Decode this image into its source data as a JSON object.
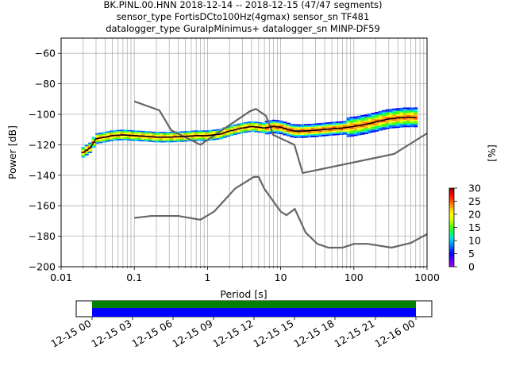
{
  "title_lines": [
    "BK.PINL.00.HNN   2018-12-14 -- 2018-12-15  (47/47 segments)",
    "sensor_type FortisDCto100Hz(4gmax) sensor_sn TF481",
    "datalogger_type GuralpMinimus+ datalogger_sn MINP-DF59"
  ],
  "chart_data": {
    "type": "heatmap",
    "xlabel": "Period [s]",
    "ylabel": "Power [dB]",
    "xscale": "log",
    "xlim": [
      0.01,
      1000
    ],
    "ylim": [
      -200,
      -50
    ],
    "grid": true,
    "x_ticks": [
      0.01,
      0.1,
      1,
      10,
      100,
      1000
    ],
    "x_tick_labels": [
      "0.01",
      "0.1",
      "1",
      "10",
      "100",
      "1000"
    ],
    "y_ticks": [
      -200,
      -180,
      -160,
      -140,
      -120,
      -100,
      -80,
      -60
    ],
    "y_tick_labels": [
      "−200",
      "−180",
      "−160",
      "−140",
      "−120",
      "−100",
      "−80",
      "−60"
    ],
    "grid_periods": [
      0.02,
      0.03,
      0.04,
      0.05,
      0.06,
      0.07,
      0.08,
      0.09,
      0.1,
      0.2,
      0.3,
      0.4,
      0.5,
      0.6,
      0.7,
      0.8,
      0.9,
      1,
      2,
      3,
      4,
      5,
      6,
      7,
      8,
      9,
      10,
      20,
      30,
      40,
      50,
      60,
      70,
      80,
      90,
      100,
      200,
      300,
      400,
      500,
      600,
      700,
      800,
      900
    ],
    "mean_psd": {
      "period": [
        0.02,
        0.025,
        0.03,
        0.04,
        0.05,
        0.07,
        0.1,
        0.15,
        0.2,
        0.3,
        0.5,
        0.7,
        1,
        1.5,
        2,
        3,
        4,
        5,
        6,
        7,
        8,
        10,
        15,
        20,
        30,
        50,
        70,
        100,
        150,
        200,
        300,
        500,
        700
      ],
      "power": [
        -125,
        -122,
        -116,
        -115,
        -114,
        -113.5,
        -114,
        -114.5,
        -115,
        -115,
        -114.5,
        -114,
        -114,
        -113,
        -111,
        -109,
        -108,
        -108.5,
        -109,
        -108.5,
        -108,
        -108.5,
        -111,
        -111,
        -110.5,
        -109.5,
        -109,
        -108,
        -106.5,
        -105,
        -103,
        -102,
        -102
      ]
    },
    "noise_models": [
      {
        "period": [
          0.1,
          0.17,
          0.4,
          0.8,
          1.24,
          2.4,
          4.3,
          5,
          6,
          10,
          12,
          15.6,
          21.9,
          31.6,
          45,
          70,
          101,
          154,
          328,
          600,
          1000
        ],
        "power": [
          -168,
          -166.7,
          -166.7,
          -169.2,
          -163.7,
          -148.6,
          -141.1,
          -141.1,
          -149,
          -163.8,
          -166.2,
          -162.1,
          -177.5,
          -185,
          -187.5,
          -187.5,
          -185,
          -185,
          -187.5,
          -184.4,
          -178.6
        ]
      },
      {
        "period": [
          0.1,
          0.22,
          0.32,
          0.8,
          3.8,
          4.6,
          6.3,
          7.9,
          15.4,
          20,
          354.8,
          1000
        ],
        "power": [
          -91.5,
          -97.4,
          -110.5,
          -120,
          -98,
          -96.5,
          -101,
          -113.5,
          -120,
          -138.5,
          -126,
          -112.5
        ]
      }
    ],
    "colorbar": {
      "label": "[%]",
      "min": 0,
      "max": 30,
      "ticks": [
        0,
        5,
        10,
        15,
        20,
        25,
        30
      ],
      "colormap": [
        "#ffffff",
        "#a000ff",
        "#5a00ff",
        "#0000ff",
        "#0064ff",
        "#00c8ff",
        "#00ff80",
        "#40ff00",
        "#c8ff00",
        "#ffff00",
        "#ffb000",
        "#ff5000",
        "#ff0000",
        "#8b0000"
      ]
    },
    "time_axis": {
      "tick_labels": [
        "12-15 00",
        "12-15 03",
        "12-15 06",
        "12-15 09",
        "12-15 12",
        "12-15 15",
        "12-15 18",
        "12-15 21",
        "12-16 00"
      ],
      "coverage_colors": [
        "#008000",
        "#0000ff"
      ]
    }
  }
}
